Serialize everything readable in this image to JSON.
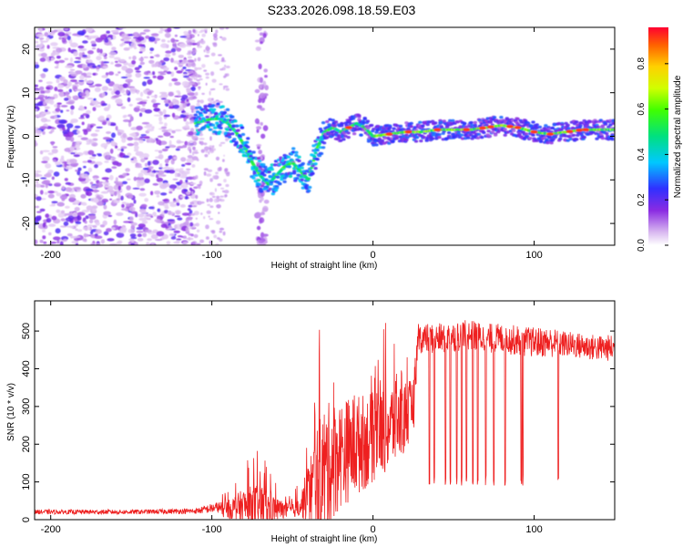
{
  "title": "S233.2026.098.18.59.E03",
  "chart_data": [
    {
      "type": "heatmap",
      "xlabel": "Height of straight line (km)",
      "ylabel": "Frequency (Hz)",
      "xlim": [
        -210,
        150
      ],
      "ylim": [
        -25,
        25
      ],
      "xticks": [
        -200,
        -100,
        0,
        100
      ],
      "yticks": [
        -20,
        -10,
        0,
        10,
        20
      ],
      "colorbar": {
        "label": "Normalized spectral amplitude",
        "range": [
          0.0,
          0.96
        ],
        "ticks": [
          0.0,
          0.2,
          0.4,
          0.6,
          0.8
        ]
      },
      "ridge": {
        "x": [
          -110,
          -100,
          -95,
          -90,
          -85,
          -80,
          -75,
          -70,
          -65,
          -60,
          -55,
          -50,
          -45,
          -40,
          -35,
          -30,
          -25,
          -20,
          -15,
          -10,
          -5,
          0,
          10,
          20,
          30,
          40,
          50,
          60,
          70,
          80,
          90,
          100,
          110,
          120,
          130,
          140,
          150
        ],
        "freq": [
          3,
          4,
          4,
          3,
          1,
          -2,
          -6,
          -9,
          -11,
          -9,
          -7,
          -6,
          -8,
          -10,
          -3,
          1,
          2,
          1,
          2,
          3,
          2,
          0,
          0.5,
          1,
          1,
          1.5,
          1.5,
          1.5,
          2,
          2.5,
          2,
          1,
          0.5,
          1,
          1.5,
          1.5,
          1.5
        ]
      }
    },
    {
      "type": "line",
      "xlabel": "Height of straight line (km)",
      "ylabel": "SNR (10 * v/v)",
      "xlim": [
        -210,
        150
      ],
      "ylim": [
        0,
        580
      ],
      "xticks": [
        -200,
        -100,
        0,
        100
      ],
      "yticks": [
        0,
        100,
        200,
        300,
        400,
        500
      ],
      "color": "#ee2020",
      "envelope": {
        "x": [
          -210,
          -150,
          -110,
          -90,
          -80,
          -70,
          -60,
          -50,
          -45,
          -40,
          -35,
          -30,
          -25,
          -20,
          -10,
          0,
          10,
          20,
          25,
          28,
          30,
          40,
          50,
          60,
          70,
          80,
          90,
          100,
          110,
          120,
          130,
          140,
          150
        ],
        "base": [
          18,
          18,
          20,
          30,
          40,
          40,
          30,
          25,
          40,
          80,
          120,
          150,
          170,
          190,
          210,
          230,
          260,
          280,
          300,
          490,
          480,
          480,
          485,
          490,
          480,
          480,
          475,
          470,
          470,
          465,
          460,
          455,
          455
        ],
        "amp": [
          10,
          10,
          12,
          30,
          60,
          80,
          40,
          20,
          40,
          100,
          180,
          220,
          200,
          180,
          170,
          150,
          150,
          120,
          100,
          40,
          40,
          40,
          40,
          40,
          40,
          40,
          40,
          40,
          40,
          35,
          35,
          35,
          35
        ]
      },
      "dropouts_x": [
        35,
        38,
        45,
        48,
        52,
        55,
        58,
        62,
        65,
        70,
        75,
        82,
        92,
        93,
        115
      ]
    }
  ]
}
